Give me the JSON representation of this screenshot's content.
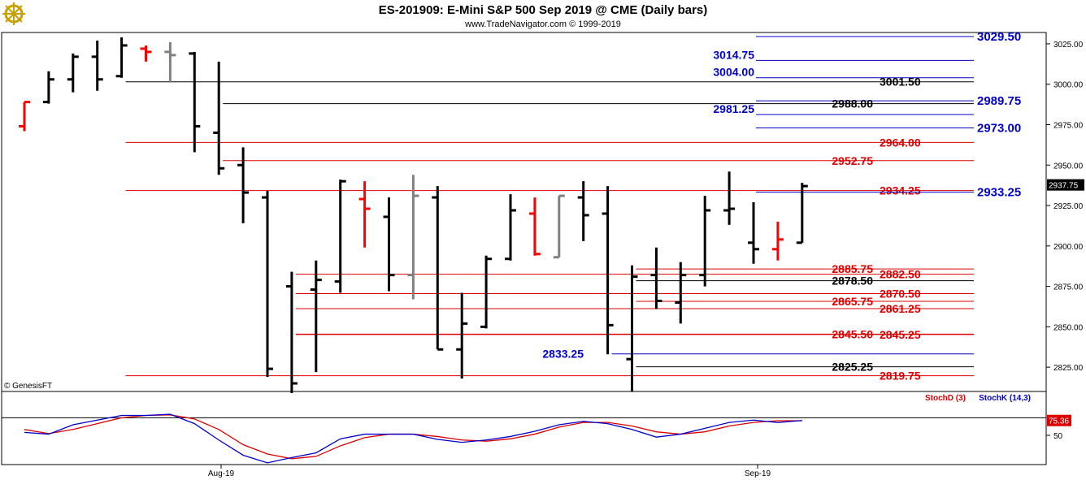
{
  "header": {
    "title": "ES-201909:  E-Mini S&P 500 Sep 2019 @ CME  (Daily bars)",
    "subtitle": "www.TradeNavigator.com © 1999-2019",
    "logo": "ship-wheel-logo"
  },
  "watermark": "© GenesisFT",
  "colors": {
    "up": "#000000",
    "down": "#ff0000",
    "neutral": "#808080",
    "blue": "#0000cc",
    "red": "#dd0000",
    "stochK": "#0000cc",
    "stochD": "#dd0000"
  },
  "chart_data": [
    {
      "type": "ohlc",
      "title": "ES-201909:  E-Mini S&P 500 Sep 2019 @ CME  (Daily bars)",
      "x_labels": [
        "Aug-19",
        "Sep-19"
      ],
      "ylim": [
        2810,
        3032
      ],
      "y_ticks": [
        2825,
        2850,
        2875,
        2900,
        2925,
        2950,
        2975,
        3000,
        3025
      ],
      "y_tick_labels": [
        "2825.00",
        "2850.00",
        "2875.00",
        "2900.00",
        "2925.00",
        "2950.00",
        "2975.00",
        "3000.00",
        "3025.00"
      ],
      "last_price": "2937.75",
      "bars": [
        {
          "o": 2974,
          "h": 2989,
          "l": 2971,
          "c": 2989,
          "color": "down"
        },
        {
          "o": 2989,
          "h": 3008,
          "l": 2988,
          "c": 3003,
          "color": "up"
        },
        {
          "o": 3003,
          "h": 3019,
          "l": 2995,
          "c": 3017,
          "color": "up"
        },
        {
          "o": 3017,
          "h": 3027,
          "l": 2996,
          "c": 3003,
          "color": "up"
        },
        {
          "o": 3005,
          "h": 3029,
          "l": 3004,
          "c": 3024,
          "color": "up"
        },
        {
          "o": 3022,
          "h": 3024,
          "l": 3014,
          "c": 3020,
          "color": "down"
        },
        {
          "o": 3020,
          "h": 3026,
          "l": 3001,
          "c": 3018,
          "color": "neutral"
        },
        {
          "o": 3019,
          "h": 3020,
          "l": 2958,
          "c": 2974,
          "color": "up"
        },
        {
          "o": 2970,
          "h": 3014,
          "l": 2944,
          "c": 2948,
          "color": "up"
        },
        {
          "o": 2950,
          "h": 2961,
          "l": 2914,
          "c": 2933,
          "color": "up"
        },
        {
          "o": 2930,
          "h": 2934,
          "l": 2819,
          "c": 2824,
          "color": "up"
        },
        {
          "o": 2875,
          "h": 2884,
          "l": 2809,
          "c": 2815,
          "color": "up"
        },
        {
          "o": 2873,
          "h": 2891,
          "l": 2822,
          "c": 2879,
          "color": "up"
        },
        {
          "o": 2878,
          "h": 2941,
          "l": 2871,
          "c": 2940,
          "color": "up"
        },
        {
          "o": 2929,
          "h": 2940,
          "l": 2899,
          "c": 2923,
          "color": "down"
        },
        {
          "o": 2918,
          "h": 2930,
          "l": 2872,
          "c": 2882,
          "color": "up"
        },
        {
          "o": 2882,
          "h": 2944,
          "l": 2867,
          "c": 2931,
          "color": "neutral"
        },
        {
          "o": 2930,
          "h": 2937,
          "l": 2836,
          "c": 2836,
          "color": "up"
        },
        {
          "o": 2836,
          "h": 2871,
          "l": 2818,
          "c": 2852,
          "color": "up"
        },
        {
          "o": 2850,
          "h": 2894,
          "l": 2849,
          "c": 2892,
          "color": "up"
        },
        {
          "o": 2892,
          "h": 2932,
          "l": 2891,
          "c": 2922,
          "color": "up"
        },
        {
          "o": 2920,
          "h": 2930,
          "l": 2894,
          "c": 2895,
          "color": "down"
        },
        {
          "o": 2893,
          "h": 2931,
          "l": 2893,
          "c": 2931,
          "color": "neutral"
        },
        {
          "o": 2930,
          "h": 2940,
          "l": 2903,
          "c": 2919,
          "color": "up"
        },
        {
          "o": 2920,
          "h": 2937,
          "l": 2833,
          "c": 2851,
          "color": "up"
        },
        {
          "o": 2830,
          "h": 2888,
          "l": 2810,
          "c": 2881,
          "color": "up"
        },
        {
          "o": 2882,
          "h": 2899,
          "l": 2861,
          "c": 2866,
          "color": "up"
        },
        {
          "o": 2865,
          "h": 2890,
          "l": 2852,
          "c": 2882,
          "color": "up"
        },
        {
          "o": 2882,
          "h": 2931,
          "l": 2875,
          "c": 2922,
          "color": "up"
        },
        {
          "o": 2922,
          "h": 2946,
          "l": 2913,
          "c": 2923,
          "color": "up"
        },
        {
          "o": 2902,
          "h": 2927,
          "l": 2889,
          "c": 2898,
          "color": "up"
        },
        {
          "o": 2898,
          "h": 2915,
          "l": 2891,
          "c": 2904,
          "color": "down"
        },
        {
          "o": 2902,
          "h": 2939,
          "l": 2902,
          "c": 2937,
          "color": "up"
        }
      ],
      "levels": [
        {
          "price": 3029.5,
          "label": "3029.50",
          "color": "blue",
          "line_from_bar": 26,
          "label_side": "right",
          "big": true
        },
        {
          "price": 3014.75,
          "label": "3014.75",
          "color": "blue",
          "line_from_bar": 26,
          "label_side": "left",
          "big": false
        },
        {
          "price": 3004.0,
          "label": "3004.00",
          "color": "blue",
          "line_from_bar": 26,
          "label_side": "left",
          "big": false
        },
        {
          "price": 3001.5,
          "label": "3001.50",
          "color": "black",
          "line_from_bar": 4,
          "label_side": "mid",
          "big": false
        },
        {
          "price": 2989.75,
          "label": "2989.75",
          "color": "blue",
          "line_from_bar": 26,
          "label_side": "right",
          "big": true
        },
        {
          "price": 2988.0,
          "label": "2988.00",
          "color": "black",
          "line_from_bar": 8,
          "label_side": "midleft",
          "big": false
        },
        {
          "price": 2981.25,
          "label": "2981.25",
          "color": "blue",
          "line_from_bar": 26,
          "label_side": "left",
          "big": false
        },
        {
          "price": 2973.0,
          "label": "2973.00",
          "color": "blue",
          "line_from_bar": 26,
          "label_side": "right",
          "big": true
        },
        {
          "price": 2964.0,
          "label": "2964.00",
          "color": "red",
          "line_from_bar": 4,
          "label_side": "mid",
          "big": false
        },
        {
          "price": 2952.75,
          "label": "2952.75",
          "color": "red",
          "line_from_bar": 8,
          "label_side": "midleft",
          "big": false
        },
        {
          "price": 2934.25,
          "label": "2934.25",
          "color": "red",
          "line_from_bar": 4,
          "label_side": "mid",
          "big": false
        },
        {
          "price": 2933.25,
          "label": "2933.25",
          "color": "blue",
          "line_from_bar": 26,
          "label_side": "right",
          "big": true
        },
        {
          "price": 2885.75,
          "label": "2885.75",
          "color": "red",
          "line_from_bar": 25,
          "label_side": "midleft",
          "big": false
        },
        {
          "price": 2882.5,
          "label": "2882.50",
          "color": "red",
          "line_from_bar": 11,
          "label_side": "mid",
          "big": false
        },
        {
          "price": 2878.5,
          "label": "2878.50",
          "color": "black",
          "line_from_bar": 25,
          "label_side": "midleft",
          "big": false
        },
        {
          "price": 2870.5,
          "label": "2870.50",
          "color": "red",
          "line_from_bar": 11,
          "label_side": "mid",
          "big": false
        },
        {
          "price": 2865.75,
          "label": "2865.75",
          "color": "red",
          "line_from_bar": 25,
          "label_side": "midleft",
          "big": false
        },
        {
          "price": 2861.25,
          "label": "2861.25",
          "color": "red",
          "line_from_bar": 11,
          "label_side": "mid",
          "big": false
        },
        {
          "price": 2845.5,
          "label": "2845.50",
          "color": "red",
          "line_from_bar": 11,
          "label_side": "midleft",
          "big": false
        },
        {
          "price": 2845.25,
          "label": "2845.25",
          "color": "red",
          "line_from_bar": 11,
          "label_side": "mid",
          "big": false
        },
        {
          "price": 2833.25,
          "label": "2833.25",
          "color": "blue",
          "line_from_bar": 24,
          "label_side": "leftlow",
          "big": false
        },
        {
          "price": 2825.25,
          "label": "2825.25",
          "color": "black",
          "line_from_bar": 25,
          "label_side": "midleft",
          "big": false
        },
        {
          "price": 2819.75,
          "label": "2819.75",
          "color": "red",
          "line_from_bar": 4,
          "label_side": "mid",
          "big": false
        }
      ]
    },
    {
      "type": "line",
      "title": "",
      "legend": [
        "StochD (3)",
        "StochK (14,3)"
      ],
      "ylim": [
        0,
        100
      ],
      "y_ticks": [
        50
      ],
      "y_tick_labels": [
        "50"
      ],
      "last_value_label": "75.36",
      "series": [
        {
          "name": "StochK (14,3)",
          "color": "stochK",
          "values": [
            55,
            52,
            68,
            76,
            84,
            84,
            86,
            70,
            42,
            16,
            3,
            12,
            20,
            44,
            52,
            52,
            52,
            43,
            38,
            42,
            48,
            57,
            68,
            74,
            70,
            60,
            47,
            52,
            62,
            72,
            76,
            72,
            75.36
          ]
        },
        {
          "name": "StochD (3)",
          "color": "stochD",
          "values": [
            60,
            53,
            60,
            70,
            80,
            84,
            85,
            78,
            60,
            34,
            18,
            10,
            14,
            32,
            46,
            52,
            52,
            48,
            42,
            40,
            44,
            52,
            64,
            72,
            72,
            66,
            56,
            52,
            56,
            66,
            72,
            75,
            75
          ]
        }
      ]
    }
  ]
}
